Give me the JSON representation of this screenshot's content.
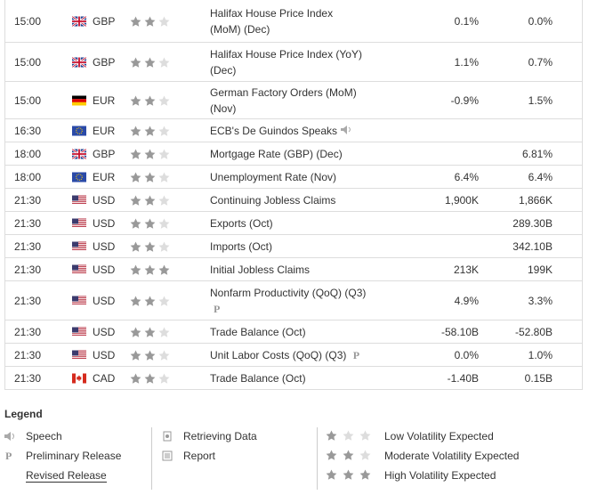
{
  "table": {
    "rows": [
      {
        "time": "15:00",
        "currency": "GBP",
        "volatility": 2,
        "event": "Halifax House Price Index (MoM) (Dec)",
        "actual": "0.1%",
        "forecast": "0.0%"
      },
      {
        "time": "15:00",
        "currency": "GBP",
        "volatility": 2,
        "event": "Halifax House Price Index (YoY) (Dec)",
        "actual": "1.1%",
        "forecast": "0.7%"
      },
      {
        "time": "15:00",
        "currency": "EUR",
        "volatility": 2,
        "event": "German Factory Orders (MoM) (Nov)",
        "actual": "-0.9%",
        "forecast": "1.5%"
      },
      {
        "time": "16:30",
        "currency": "EUR",
        "volatility": 2,
        "event": "ECB's De Guindos Speaks",
        "speech": true,
        "actual": null,
        "forecast": null
      },
      {
        "time": "18:00",
        "currency": "GBP",
        "volatility": 2,
        "event": "Mortgage Rate (GBP) (Dec)",
        "actual": null,
        "forecast": "6.81%"
      },
      {
        "time": "18:00",
        "currency": "EUR",
        "volatility": 2,
        "event": "Unemployment Rate (Nov)",
        "actual": "6.4%",
        "forecast": "6.4%"
      },
      {
        "time": "21:30",
        "currency": "USD",
        "volatility": 2,
        "event": "Continuing Jobless Claims",
        "actual": "1,900K",
        "forecast": "1,866K"
      },
      {
        "time": "21:30",
        "currency": "USD",
        "volatility": 2,
        "event": "Exports (Oct)",
        "actual": null,
        "forecast": "289.30B"
      },
      {
        "time": "21:30",
        "currency": "USD",
        "volatility": 2,
        "event": "Imports (Oct)",
        "actual": null,
        "forecast": "342.10B"
      },
      {
        "time": "21:30",
        "currency": "USD",
        "volatility": 3,
        "event": "Initial Jobless Claims",
        "actual": "213K",
        "forecast": "199K"
      },
      {
        "time": "21:30",
        "currency": "USD",
        "volatility": 2,
        "event": "Nonfarm Productivity (QoQ) (Q3)",
        "preliminary": true,
        "actual": "4.9%",
        "forecast": "3.3%"
      },
      {
        "time": "21:30",
        "currency": "USD",
        "volatility": 2,
        "event": "Trade Balance (Oct)",
        "actual": "-58.10B",
        "forecast": "-52.80B"
      },
      {
        "time": "21:30",
        "currency": "USD",
        "volatility": 2,
        "event": "Unit Labor Costs (QoQ) (Q3)",
        "preliminary": true,
        "actual": "0.0%",
        "forecast": "1.0%"
      },
      {
        "time": "21:30",
        "currency": "CAD",
        "volatility": 2,
        "event": "Trade Balance (Oct)",
        "actual": "-1.40B",
        "forecast": "0.15B"
      }
    ]
  },
  "legend": {
    "title": "Legend",
    "speech": "Speech",
    "preliminary": "Preliminary Release",
    "revised": "Revised Release",
    "retrieving": "Retrieving Data",
    "report": "Report",
    "low": "Low Volatility Expected",
    "moderate": "Moderate Volatility Expected",
    "high": "High Volatility Expected"
  }
}
